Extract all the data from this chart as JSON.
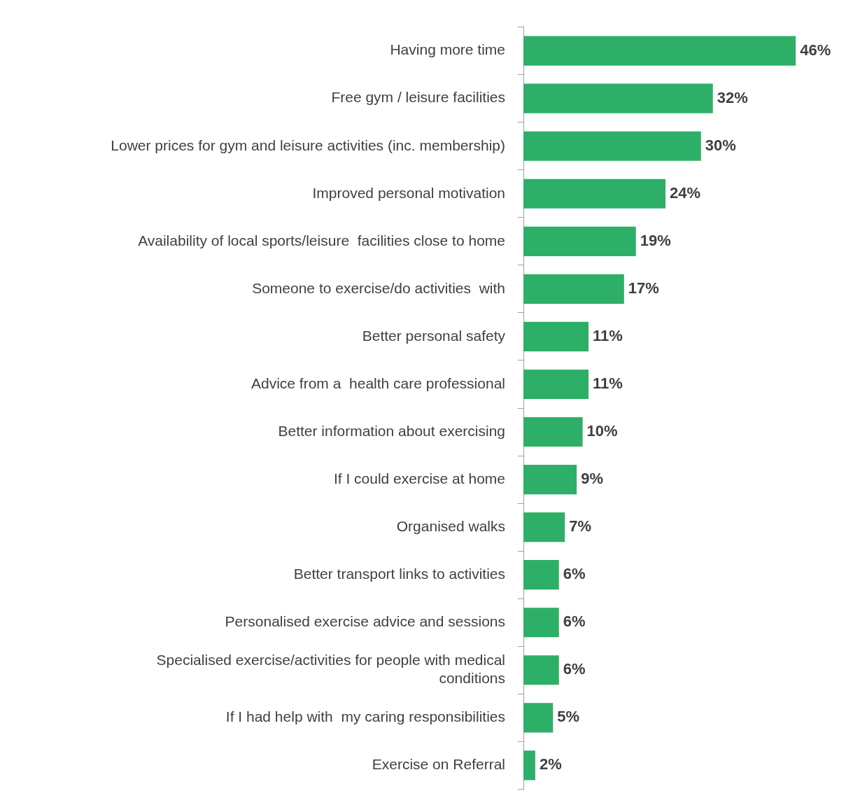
{
  "chart_data": {
    "type": "bar",
    "orientation": "horizontal",
    "categories": [
      "Having more time",
      "Free gym / leisure facilities",
      "Lower prices for gym and leisure activities (inc. membership)",
      "Improved personal motivation",
      "Availability of local sports/leisure  facilities close to home",
      "Someone to exercise/do activities  with",
      "Better personal safety",
      "Advice from a  health care professional",
      "Better information about exercising",
      "If I could exercise at home",
      "Organised walks",
      "Better transport links to activities",
      "Personalised exercise advice and sessions",
      "Specialised exercise/activities for people with medical conditions",
      "If I had help with  my caring responsibilities",
      "Exercise on Referral"
    ],
    "values": [
      46,
      32,
      30,
      24,
      19,
      17,
      11,
      11,
      10,
      9,
      7,
      6,
      6,
      6,
      5,
      2
    ],
    "value_labels": [
      "46%",
      "32%",
      "30%",
      "24%",
      "19%",
      "17%",
      "11%",
      "11%",
      "10%",
      "9%",
      "7%",
      "6%",
      "6%",
      "6%",
      "5%",
      "2%"
    ],
    "color": "#2eaf68",
    "grid": false,
    "legend": false
  }
}
